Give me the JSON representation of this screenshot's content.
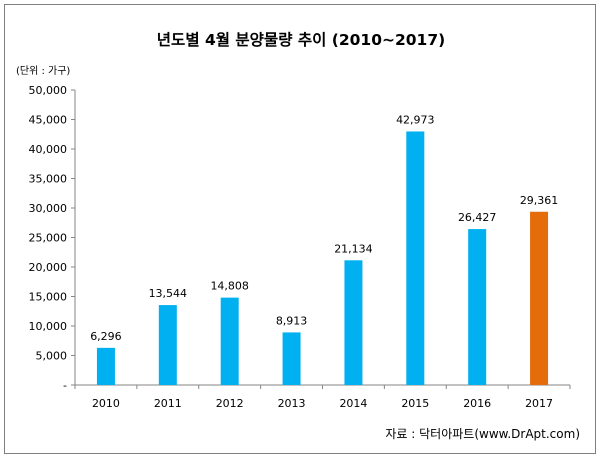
{
  "chart_data": {
    "type": "bar",
    "title": "년도별  4월 분양물량 추이 (2010~2017)",
    "unit_label": "(단위 : 가구)",
    "source": "자료 : 닥터아파트(www.DrApt.com)",
    "categories": [
      "2010",
      "2011",
      "2012",
      "2013",
      "2014",
      "2015",
      "2016",
      "2017"
    ],
    "values": [
      6296,
      13544,
      14808,
      8913,
      21134,
      42973,
      26427,
      29361
    ],
    "data_labels": [
      "6,296",
      "13,544",
      "14,808",
      "8,913",
      "21,134",
      "42,973",
      "26,427",
      "29,361"
    ],
    "y_ticks": [
      {
        "value": 0,
        "label": "-"
      },
      {
        "value": 5000,
        "label": "5,000"
      },
      {
        "value": 10000,
        "label": "10,000"
      },
      {
        "value": 15000,
        "label": "15,000"
      },
      {
        "value": 20000,
        "label": "20,000"
      },
      {
        "value": 25000,
        "label": "25,000"
      },
      {
        "value": 30000,
        "label": "30,000"
      },
      {
        "value": 35000,
        "label": "35,000"
      },
      {
        "value": 40000,
        "label": "40,000"
      },
      {
        "value": 45000,
        "label": "45,000"
      },
      {
        "value": 50000,
        "label": "50,000"
      }
    ],
    "ylim": [
      0,
      50000
    ],
    "grid": false,
    "legend": "none",
    "colors": {
      "default_bar": "#00b0f0",
      "highlight_bar": "#e46c0a",
      "axis": "#868686"
    },
    "highlight_categories": [
      "2017"
    ]
  }
}
